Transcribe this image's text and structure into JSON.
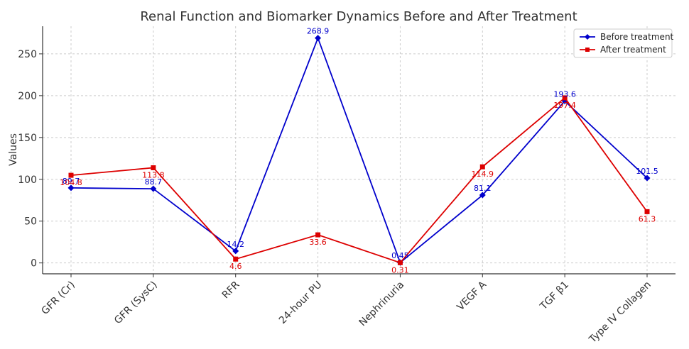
{
  "chart_data": {
    "type": "line",
    "title": "Renal Function and Biomarker Dynamics Before and After Treatment",
    "xlabel": "",
    "ylabel": "Values",
    "categories": [
      "GFR (Cr)",
      "GFR (SysC)",
      "RFR",
      "24-hour PU",
      "Nephrinuria",
      "VEGF A",
      "TGF β1",
      "Type IV Collagen"
    ],
    "ylim": [
      -13,
      283
    ],
    "yticks": [
      0,
      50,
      100,
      150,
      200,
      250
    ],
    "grid": true,
    "legend_position": "top-right",
    "series": [
      {
        "name": "Before treatment",
        "color": "#0000cc",
        "marker": "diamond",
        "values": [
          89.7,
          88.7,
          14.2,
          268.9,
          0.45,
          81.1,
          193.6,
          101.5
        ],
        "labels": [
          "89.7",
          "88.7",
          "14.2",
          "268.9",
          "0.45",
          "81.1",
          "193.6",
          "101.5"
        ]
      },
      {
        "name": "After treatment",
        "color": "#dd0000",
        "marker": "square",
        "values": [
          104.8,
          113.8,
          4.6,
          33.6,
          0.31,
          114.9,
          197.4,
          61.3
        ],
        "labels": [
          "104.8",
          "113.8",
          "4.6",
          "33.6",
          "0.31",
          "114.9",
          "197.4",
          "61.3"
        ]
      }
    ]
  }
}
